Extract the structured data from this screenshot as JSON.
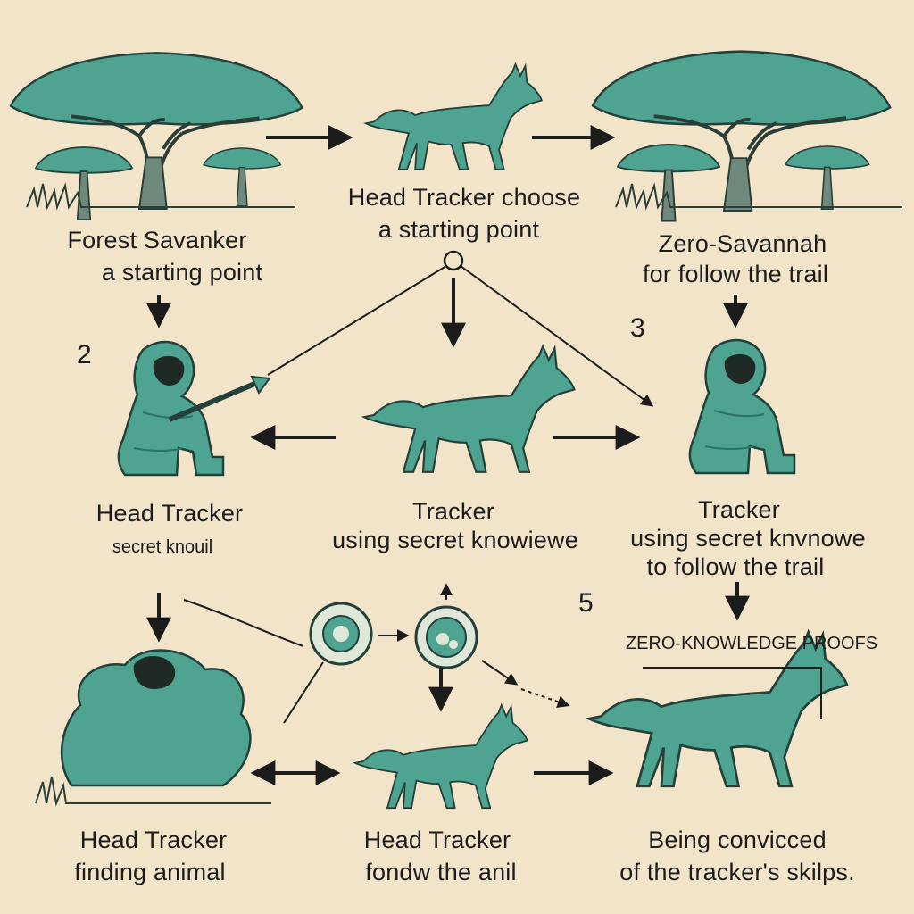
{
  "labels": {
    "forest_title": "Forest Savanker",
    "forest_sub": "a starting point",
    "top_mid_1": "Head Tracker choose",
    "top_mid_2": "a starting point",
    "savannah_title": "Zero-Savannah",
    "savannah_sub": "for follow the trail",
    "mid_left_1": "Head Tracker",
    "mid_left_2": "secret knouil",
    "mid_center_1": "Tracker",
    "mid_center_2": "using secret knowiewe",
    "mid_right_1": "Tracker",
    "mid_right_2": "using secret knvnowe",
    "mid_right_3": "to follow the trail",
    "zkp": "ZERO-KNOWLEDGE PROOFS",
    "bot_left_1": "Head Tracker",
    "bot_left_2": "finding  animal",
    "bot_mid_1": "Head Tracker",
    "bot_mid_2": "fondw the anil",
    "bot_right_1": "Being convicced",
    "bot_right_2": "of the tracker's skilps."
  },
  "step_numbers": {
    "n2": "2",
    "n3": "3",
    "n5": "5"
  },
  "colors": {
    "background": "#f1e4c8",
    "teal": "#4ea391",
    "teal_dark": "#2f7366",
    "ink": "#1c1c1c",
    "trunk": "#6f8a7c"
  },
  "icons": [
    "acacia-tree",
    "jackal",
    "hooded-tracker",
    "mushroom-tree",
    "zk-proof-circle",
    "arrow"
  ]
}
